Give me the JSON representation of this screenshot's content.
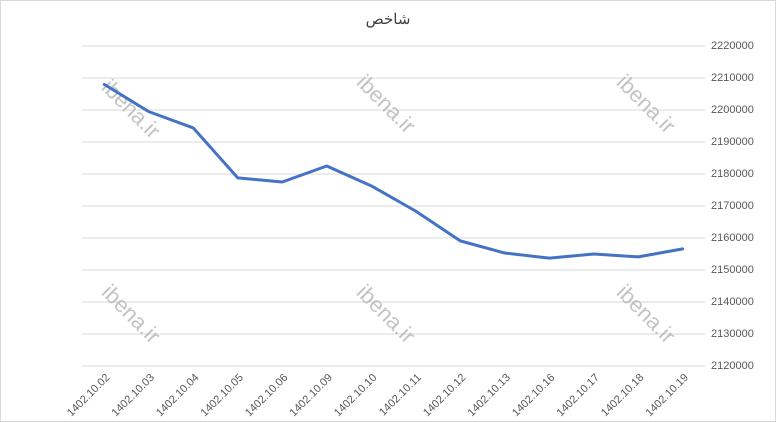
{
  "chart_data": {
    "type": "line",
    "title": "شاخص",
    "categories": [
      "1402.10.02",
      "1402.10.03",
      "1402.10.04",
      "1402.10.05",
      "1402.10.06",
      "1402.10.09",
      "1402.10.10",
      "1402.10.11",
      "1402.10.12",
      "1402.10.13",
      "1402.10.16",
      "1402.10.17",
      "1402.10.18",
      "1402.10.19"
    ],
    "values": [
      2208000,
      2199500,
      2194400,
      2178800,
      2177500,
      2182500,
      2176300,
      2168400,
      2159100,
      2155300,
      2153700,
      2155000,
      2154100,
      2156600
    ],
    "color": "#4472c4",
    "ylim": [
      2120000,
      2220000
    ],
    "yticks": [
      2120000,
      2130000,
      2140000,
      2150000,
      2160000,
      2170000,
      2180000,
      2190000,
      2200000,
      2210000,
      2220000
    ],
    "grid": true
  },
  "watermarks": [
    "ibena.ir",
    "ibena.ir",
    "ibena.ir",
    "ibena.ir",
    "ibena.ir",
    "ibena.ir"
  ]
}
